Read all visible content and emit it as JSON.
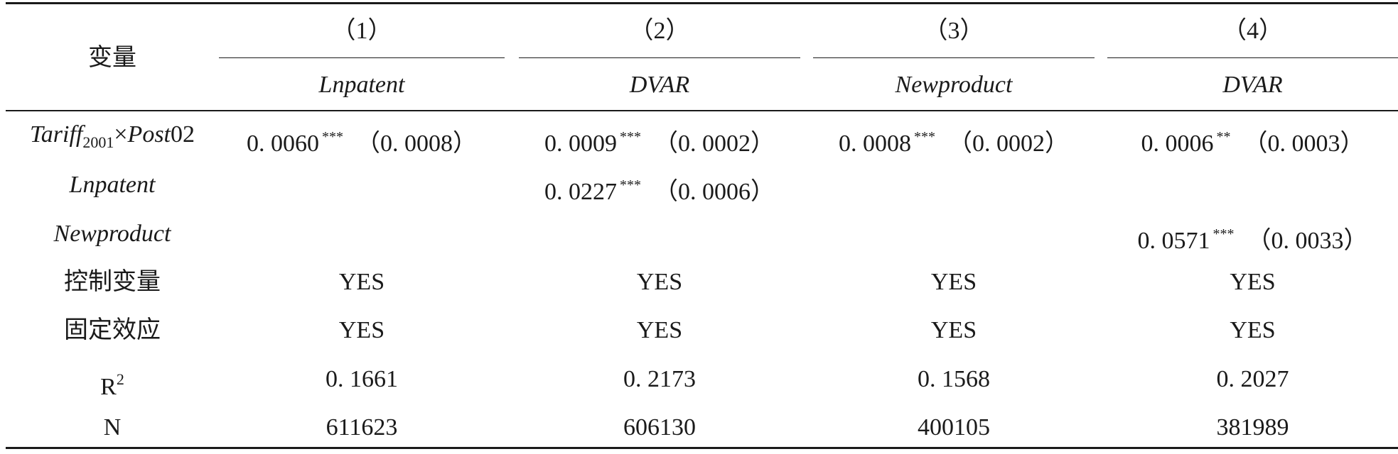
{
  "header": {
    "var_label": "变量",
    "columns": [
      {
        "num": "（1）",
        "dep": "Lnpatent"
      },
      {
        "num": "（2）",
        "dep": "DVAR"
      },
      {
        "num": "（3）",
        "dep": "Newproduct"
      },
      {
        "num": "（4）",
        "dep": "DVAR"
      }
    ]
  },
  "rows": {
    "tariff": {
      "label": {
        "a": "Tariff",
        "b": "2001",
        "c": "×",
        "d": "Post",
        "e": "02"
      },
      "cells": [
        {
          "coef": "0. 0060",
          "stars": "***",
          "se": "（0. 0008）"
        },
        {
          "coef": "0. 0009",
          "stars": "***",
          "se": "（0. 0002）"
        },
        {
          "coef": "0. 0008",
          "stars": "***",
          "se": "（0. 0002）"
        },
        {
          "coef": "0. 0006",
          "stars": "**",
          "se": "（0. 0003）"
        }
      ]
    },
    "lnpatent": {
      "label": "Lnpatent",
      "cell": {
        "coef": "0. 0227",
        "stars": "***",
        "se": "（0. 0006）"
      }
    },
    "newproduct": {
      "label": "Newproduct",
      "cell": {
        "coef": "0. 0571",
        "stars": "***",
        "se": "（0. 0033）"
      }
    },
    "controls": {
      "label": "控制变量",
      "values": [
        "YES",
        "YES",
        "YES",
        "YES"
      ]
    },
    "fixed": {
      "label": "固定效应",
      "values": [
        "YES",
        "YES",
        "YES",
        "YES"
      ]
    },
    "r2": {
      "label": "R",
      "sup": "2",
      "values": [
        "0. 1661",
        "0. 2173",
        "0. 1568",
        "0. 2027"
      ]
    },
    "n": {
      "label": "N",
      "values": [
        "611623",
        "606130",
        "400105",
        "381989"
      ]
    }
  }
}
